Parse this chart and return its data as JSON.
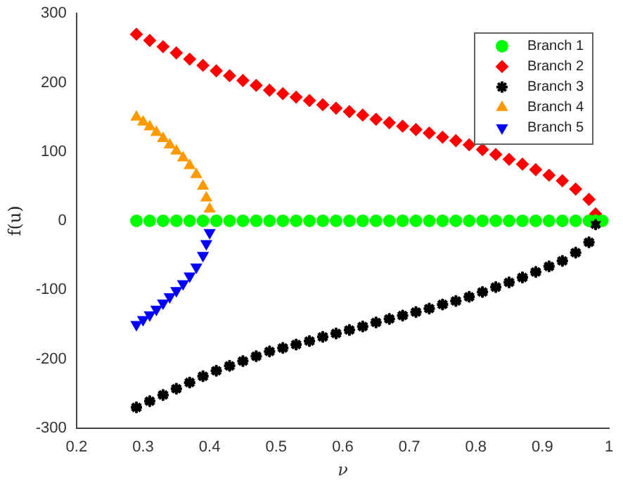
{
  "chart_data": {
    "type": "scatter",
    "xlabel": "ν",
    "ylabel": "f(u)",
    "xlim": [
      0.2,
      1
    ],
    "ylim": [
      -300,
      300
    ],
    "xticks": [
      0.2,
      0.3,
      0.4,
      0.5,
      0.6,
      0.7,
      0.8,
      0.9,
      1
    ],
    "yticks": [
      -300,
      -200,
      -100,
      0,
      100,
      200,
      300
    ],
    "grid": false,
    "legend": "top right",
    "series": [
      {
        "name": "Branch 1",
        "color": "#00ff00",
        "marker": "circle",
        "x": [
          0.29,
          0.31,
          0.33,
          0.35,
          0.37,
          0.39,
          0.41,
          0.43,
          0.45,
          0.47,
          0.49,
          0.51,
          0.53,
          0.55,
          0.57,
          0.59,
          0.61,
          0.63,
          0.65,
          0.67,
          0.69,
          0.71,
          0.73,
          0.75,
          0.77,
          0.79,
          0.81,
          0.83,
          0.85,
          0.87,
          0.89,
          0.91,
          0.93,
          0.95,
          0.97,
          0.98,
          0.99
        ],
        "values": [
          0,
          0,
          0,
          0,
          0,
          0,
          0,
          0,
          0,
          0,
          0,
          0,
          0,
          0,
          0,
          0,
          0,
          0,
          0,
          0,
          0,
          0,
          0,
          0,
          0,
          0,
          0,
          0,
          0,
          0,
          0,
          0,
          0,
          0,
          0,
          0,
          0
        ]
      },
      {
        "name": "Branch 2",
        "color": "#ff0000",
        "marker": "diamond",
        "x": [
          0.29,
          0.31,
          0.33,
          0.35,
          0.37,
          0.39,
          0.41,
          0.43,
          0.45,
          0.47,
          0.49,
          0.51,
          0.53,
          0.55,
          0.57,
          0.59,
          0.61,
          0.63,
          0.65,
          0.67,
          0.69,
          0.71,
          0.73,
          0.75,
          0.77,
          0.79,
          0.81,
          0.83,
          0.85,
          0.87,
          0.89,
          0.91,
          0.93,
          0.95,
          0.97,
          0.98
        ],
        "values": [
          270,
          261,
          252,
          243,
          234,
          225,
          217,
          210,
          203,
          196,
          189,
          184,
          179,
          174,
          168,
          163,
          158,
          153,
          147,
          142,
          137,
          132,
          127,
          121,
          116,
          110,
          103,
          96,
          89,
          82,
          74,
          66,
          58,
          46,
          31,
          10
        ]
      },
      {
        "name": "Branch 3",
        "color": "#000000",
        "x": [
          0.29,
          0.31,
          0.33,
          0.35,
          0.37,
          0.39,
          0.41,
          0.43,
          0.45,
          0.47,
          0.49,
          0.51,
          0.53,
          0.55,
          0.57,
          0.59,
          0.61,
          0.63,
          0.65,
          0.67,
          0.69,
          0.71,
          0.73,
          0.75,
          0.77,
          0.79,
          0.81,
          0.83,
          0.85,
          0.87,
          0.89,
          0.91,
          0.93,
          0.95,
          0.97,
          0.98
        ],
        "values": [
          -270,
          -261,
          -252,
          -243,
          -234,
          -225,
          -217,
          -210,
          -203,
          -196,
          -189,
          -184,
          -179,
          -174,
          -168,
          -163,
          -158,
          -153,
          -147,
          -142,
          -137,
          -132,
          -127,
          -121,
          -116,
          -110,
          -103,
          -96,
          -89,
          -82,
          -74,
          -66,
          -58,
          -46,
          -31,
          -5
        ]
      },
      {
        "name": "Branch 4",
        "color": "#ff9900",
        "marker": "triangle",
        "x": [
          0.29,
          0.3,
          0.31,
          0.32,
          0.33,
          0.34,
          0.35,
          0.36,
          0.37,
          0.38,
          0.39,
          0.395,
          0.4
        ],
        "values": [
          150,
          143,
          136,
          128,
          119,
          110,
          101,
          91,
          80,
          67,
          50,
          33,
          17
        ]
      },
      {
        "name": "Branch 5",
        "color": "#0000ff",
        "marker": "triangle-down",
        "x": [
          0.29,
          0.3,
          0.31,
          0.32,
          0.33,
          0.34,
          0.35,
          0.36,
          0.37,
          0.38,
          0.39,
          0.395,
          0.4
        ],
        "values": [
          -150,
          -143,
          -136,
          -128,
          -119,
          -110,
          -101,
          -91,
          -80,
          -67,
          -50,
          -33,
          -17
        ]
      }
    ]
  }
}
